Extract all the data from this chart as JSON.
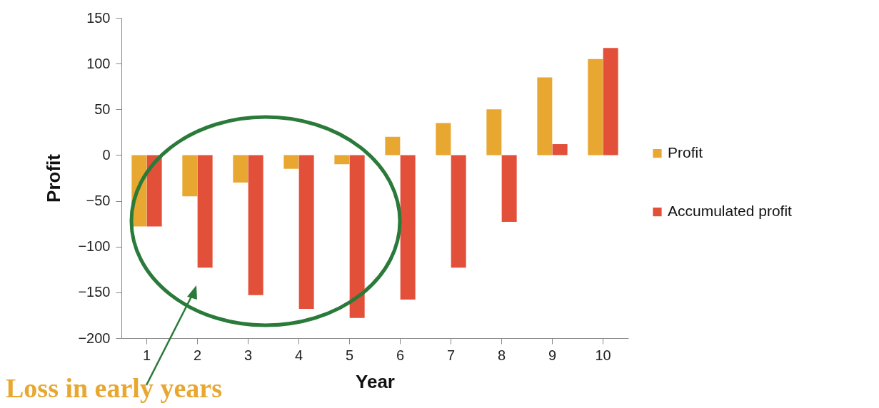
{
  "chart_data": {
    "type": "bar",
    "xlabel": "Year",
    "ylabel": "Profit",
    "categories": [
      "1",
      "2",
      "3",
      "4",
      "5",
      "6",
      "7",
      "8",
      "9",
      "10"
    ],
    "series": [
      {
        "name": "Profit",
        "color": "#e8a730",
        "values": [
          -78,
          -45,
          -30,
          -15,
          -10,
          20,
          35,
          50,
          85,
          105
        ]
      },
      {
        "name": "Accumulated profit",
        "color": "#e2503a",
        "values": [
          -78,
          -123,
          -153,
          -168,
          -178,
          -158,
          -123,
          -73,
          12,
          117
        ]
      }
    ],
    "ylim": [
      -200,
      150
    ],
    "yticks": [
      -200,
      -150,
      -100,
      -50,
      0,
      50,
      100,
      150
    ],
    "grid": false,
    "legend": "right",
    "annotations": [
      "Loss in early years"
    ]
  }
}
